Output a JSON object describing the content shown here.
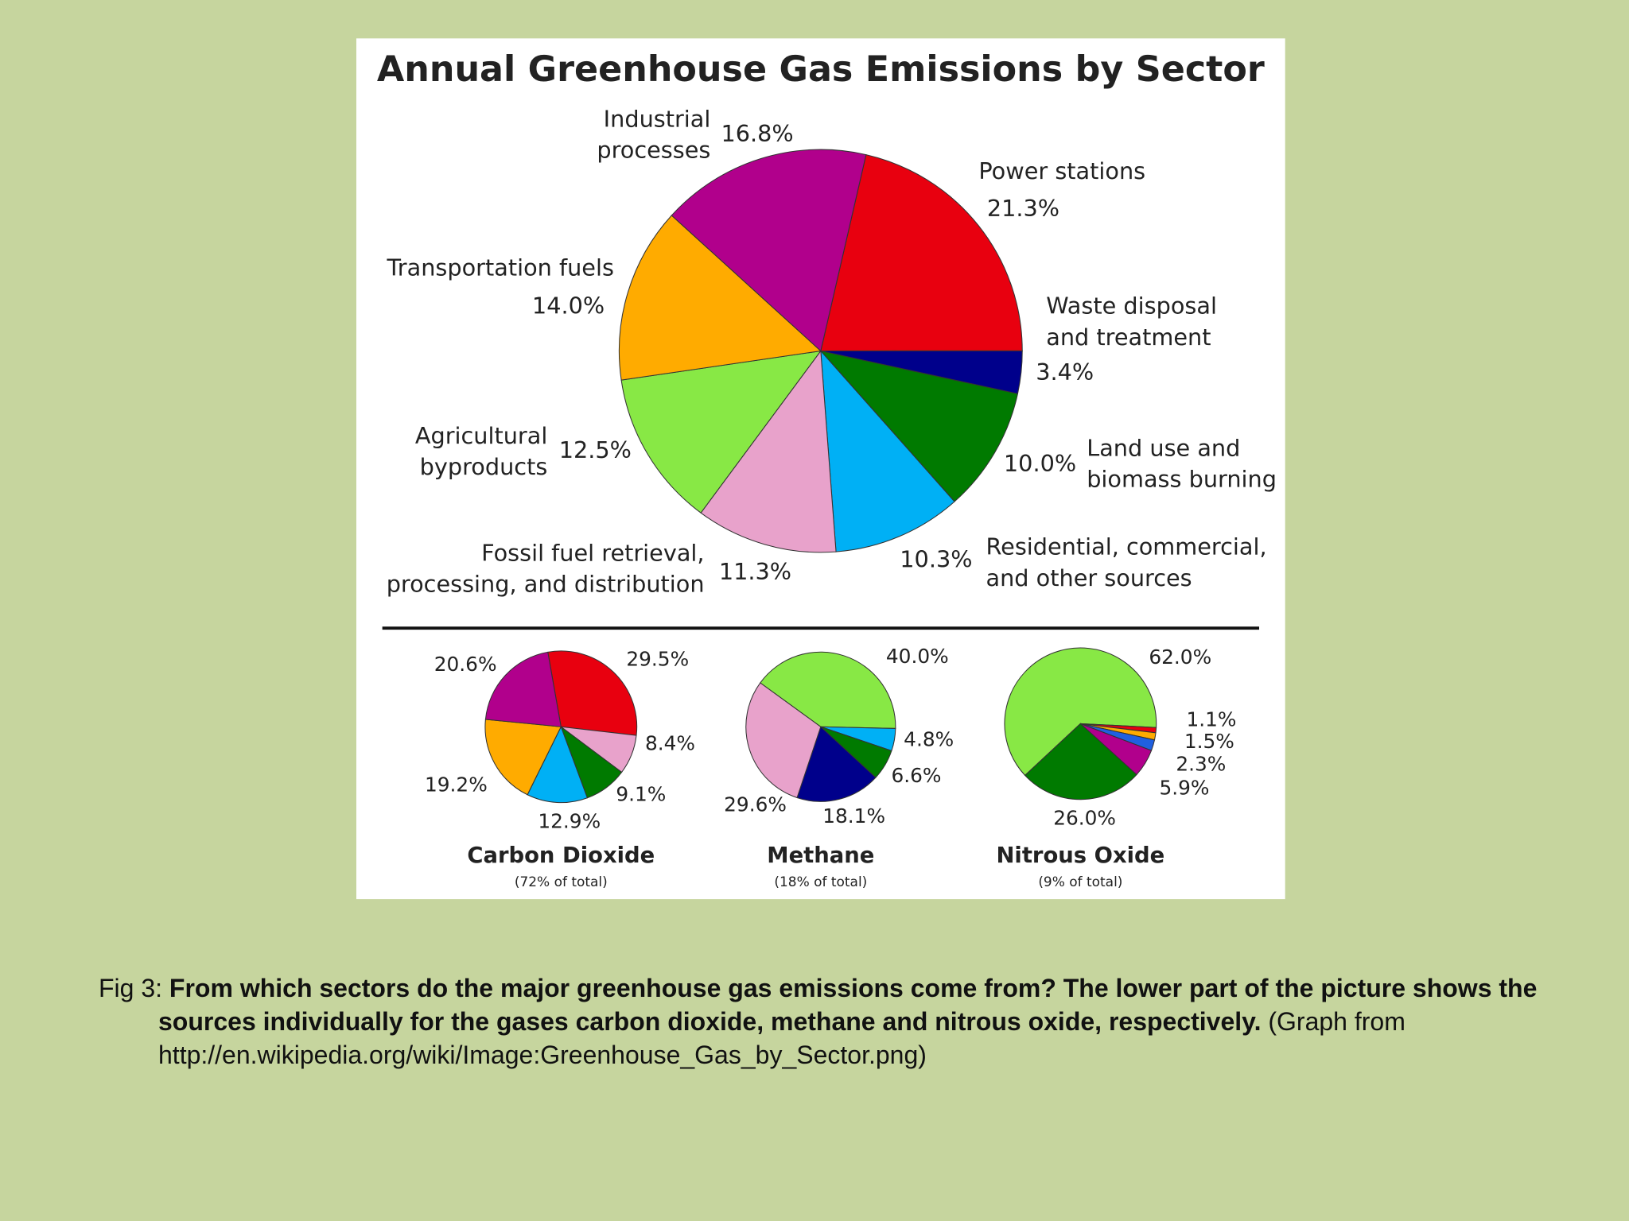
{
  "chart_data": [
    {
      "type": "pie",
      "title": "Annual Greenhouse Gas Emissions by Sector",
      "categories": [
        "Power stations",
        "Waste disposal\nand treatment",
        "Land use and\nbiomass burning",
        "Residential, commercial,\nand other sources",
        "Fossil fuel retrieval,\nprocessing, and distribution",
        "Agricultural\nbyproducts",
        "Transportation fuels",
        "Industrial\nprocesses"
      ],
      "values": [
        21.3,
        3.4,
        10.0,
        10.3,
        11.3,
        12.5,
        14.0,
        16.8
      ],
      "value_labels": [
        "21.3%",
        "3.4%",
        "10.0%",
        "10.3%",
        "11.3%",
        "12.5%",
        "14.0%",
        "16.8%"
      ],
      "colors": [
        "#e8000f",
        "#00008b",
        "#007a00",
        "#00b0f5",
        "#e8a2cb",
        "#88e845",
        "#ffab00",
        "#b1008c"
      ]
    },
    {
      "type": "pie",
      "title": "Carbon Dioxide",
      "subtitle": "(72% of total)",
      "values": [
        29.5,
        8.4,
        9.1,
        12.9,
        19.2,
        20.6
      ],
      "value_labels": [
        "29.5%",
        "8.4%",
        "9.1%",
        "12.9%",
        "19.2%",
        "20.6%"
      ],
      "colors": [
        "#e8000f",
        "#e8a2cb",
        "#007a00",
        "#00b0f5",
        "#ffab00",
        "#b1008c"
      ]
    },
    {
      "type": "pie",
      "title": "Methane",
      "subtitle": "(18% of total)",
      "values": [
        40.0,
        4.8,
        6.6,
        18.1,
        29.6
      ],
      "value_labels": [
        "40.0%",
        "4.8%",
        "6.6%",
        "18.1%",
        "29.6%"
      ],
      "colors": [
        "#88e845",
        "#00b0f5",
        "#007a00",
        "#00008b",
        "#e8a2cb"
      ]
    },
    {
      "type": "pie",
      "title": "Nitrous Oxide",
      "subtitle": "(9% of total)",
      "values": [
        62.0,
        1.1,
        1.5,
        2.3,
        5.9,
        26.0
      ],
      "value_labels": [
        "62.0%",
        "1.1%",
        "1.5%",
        "2.3%",
        "5.9%",
        "26.0%"
      ],
      "colors": [
        "#88e845",
        "#e8000f",
        "#ffab00",
        "#2060e0",
        "#b1008c",
        "#007a00"
      ]
    }
  ],
  "caption": {
    "label": "Fig 3:",
    "question": "From which sectors do the major greenhouse gas emissions come from? The lower part of the picture shows the sources individually for the gases carbon dioxide, methane and nitrous oxide, respectively.",
    "source": "(Graph from http://en.wikipedia.org/wiki/Image:Greenhouse_Gas_by_Sector.png)"
  }
}
